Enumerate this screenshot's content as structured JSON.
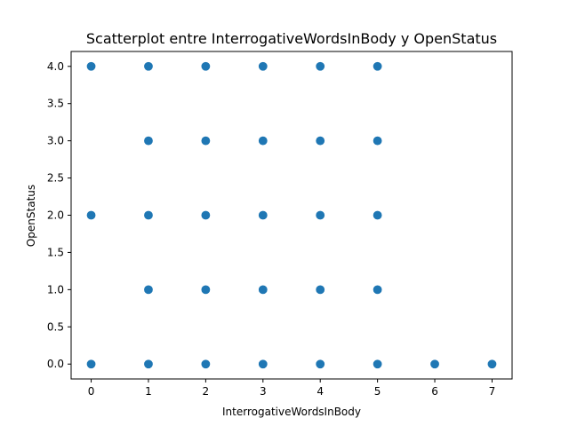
{
  "chart_data": {
    "type": "scatter",
    "title": "Scatterplot entre InterrogativeWordsInBody y OpenStatus",
    "xlabel": "InterrogativeWordsInBody",
    "ylabel": "OpenStatus",
    "xlim": [
      -0.35,
      7.35
    ],
    "ylim": [
      -0.2,
      4.2
    ],
    "xticks": [
      0,
      1,
      2,
      3,
      4,
      5,
      6,
      7
    ],
    "xtick_labels": [
      "0",
      "1",
      "2",
      "3",
      "4",
      "5",
      "6",
      "7"
    ],
    "yticks": [
      0.0,
      0.5,
      1.0,
      1.5,
      2.0,
      2.5,
      3.0,
      3.5,
      4.0
    ],
    "ytick_labels": [
      "0.0",
      "0.5",
      "1.0",
      "1.5",
      "2.0",
      "2.5",
      "3.0",
      "3.5",
      "4.0"
    ],
    "grid": false,
    "marker_color": "#1f77b4",
    "points": [
      {
        "x": 0,
        "y": 4
      },
      {
        "x": 1,
        "y": 4
      },
      {
        "x": 2,
        "y": 4
      },
      {
        "x": 3,
        "y": 4
      },
      {
        "x": 4,
        "y": 4
      },
      {
        "x": 5,
        "y": 4
      },
      {
        "x": 1,
        "y": 3
      },
      {
        "x": 2,
        "y": 3
      },
      {
        "x": 3,
        "y": 3
      },
      {
        "x": 4,
        "y": 3
      },
      {
        "x": 5,
        "y": 3
      },
      {
        "x": 0,
        "y": 2
      },
      {
        "x": 1,
        "y": 2
      },
      {
        "x": 2,
        "y": 2
      },
      {
        "x": 3,
        "y": 2
      },
      {
        "x": 4,
        "y": 2
      },
      {
        "x": 5,
        "y": 2
      },
      {
        "x": 1,
        "y": 1
      },
      {
        "x": 2,
        "y": 1
      },
      {
        "x": 3,
        "y": 1
      },
      {
        "x": 4,
        "y": 1
      },
      {
        "x": 5,
        "y": 1
      },
      {
        "x": 0,
        "y": 0
      },
      {
        "x": 1,
        "y": 0
      },
      {
        "x": 2,
        "y": 0
      },
      {
        "x": 3,
        "y": 0
      },
      {
        "x": 4,
        "y": 0
      },
      {
        "x": 5,
        "y": 0
      },
      {
        "x": 6,
        "y": 0
      },
      {
        "x": 7,
        "y": 0
      }
    ]
  }
}
